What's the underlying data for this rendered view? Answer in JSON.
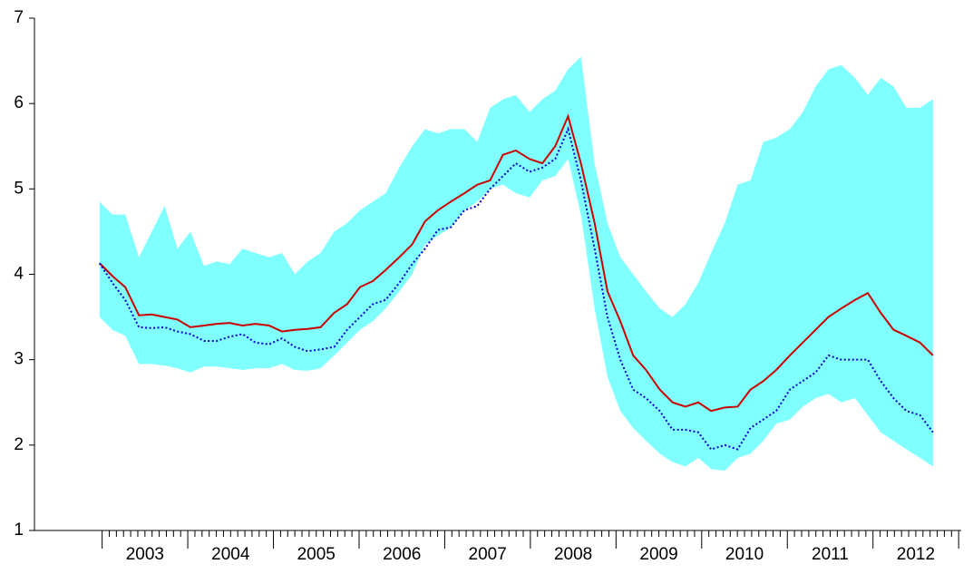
{
  "chart_data": {
    "type": "band-line",
    "x": [
      2002.97,
      2003.12,
      2003.27,
      2003.43,
      2003.58,
      2003.73,
      2003.88,
      2004.03,
      2004.19,
      2004.34,
      2004.49,
      2004.64,
      2004.79,
      2004.95,
      2005.1,
      2005.25,
      2005.4,
      2005.55,
      2005.71,
      2005.86,
      2006.01,
      2006.16,
      2006.31,
      2006.47,
      2006.62,
      2006.77,
      2006.92,
      2007.07,
      2007.23,
      2007.38,
      2007.53,
      2007.68,
      2007.83,
      2007.99,
      2008.14,
      2008.29,
      2008.44,
      2008.59,
      2008.75,
      2008.9,
      2009.05,
      2009.2,
      2009.35,
      2009.51,
      2009.66,
      2009.81,
      2009.96,
      2010.11,
      2010.27,
      2010.42,
      2010.57,
      2010.72,
      2010.87,
      2011.03,
      2011.18,
      2011.33,
      2011.48,
      2011.63,
      2011.79,
      2011.94,
      2012.09,
      2012.24,
      2012.39,
      2012.55,
      2012.7
    ],
    "band": {
      "color": "#80ffff",
      "upper": [
        4.85,
        4.7,
        4.7,
        4.2,
        4.5,
        4.8,
        4.3,
        4.5,
        4.1,
        4.15,
        4.12,
        4.3,
        4.25,
        4.2,
        4.25,
        4.0,
        4.15,
        4.25,
        4.5,
        4.6,
        4.75,
        4.85,
        4.95,
        5.25,
        5.5,
        5.7,
        5.65,
        5.7,
        5.7,
        5.55,
        5.95,
        6.05,
        6.1,
        5.9,
        6.05,
        6.15,
        6.4,
        6.55,
        5.3,
        4.6,
        4.2,
        4.0,
        3.8,
        3.6,
        3.5,
        3.65,
        3.9,
        4.25,
        4.6,
        5.05,
        5.1,
        5.55,
        5.6,
        5.7,
        5.9,
        6.2,
        6.4,
        6.45,
        6.3,
        6.1,
        6.3,
        6.2,
        5.95,
        5.95,
        6.05
      ],
      "lower": [
        3.5,
        3.35,
        3.28,
        2.95,
        2.95,
        2.93,
        2.9,
        2.85,
        2.92,
        2.92,
        2.9,
        2.88,
        2.9,
        2.9,
        2.95,
        2.88,
        2.87,
        2.9,
        3.05,
        3.2,
        3.35,
        3.45,
        3.6,
        3.8,
        4.0,
        4.35,
        4.45,
        4.55,
        4.75,
        4.85,
        5.0,
        5.05,
        4.95,
        4.9,
        5.1,
        5.15,
        5.35,
        4.7,
        3.6,
        2.8,
        2.4,
        2.2,
        2.05,
        1.9,
        1.8,
        1.75,
        1.85,
        1.72,
        1.7,
        1.85,
        1.9,
        2.05,
        2.25,
        2.3,
        2.45,
        2.55,
        2.6,
        2.5,
        2.55,
        2.35,
        2.15,
        2.05,
        1.95,
        1.85,
        1.75
      ]
    },
    "series": [
      {
        "color": "#cc0000",
        "line_style": "solid",
        "values": [
          4.13,
          3.98,
          3.85,
          3.52,
          3.53,
          3.5,
          3.47,
          3.38,
          3.4,
          3.42,
          3.43,
          3.4,
          3.42,
          3.4,
          3.33,
          3.35,
          3.36,
          3.38,
          3.55,
          3.65,
          3.85,
          3.92,
          4.05,
          4.2,
          4.35,
          4.62,
          4.75,
          4.85,
          4.95,
          5.05,
          5.1,
          5.4,
          5.45,
          5.35,
          5.3,
          5.5,
          5.85,
          5.3,
          4.6,
          3.8,
          3.45,
          3.05,
          2.88,
          2.65,
          2.5,
          2.45,
          2.5,
          2.4,
          2.44,
          2.45,
          2.65,
          2.75,
          2.88,
          3.05,
          3.2,
          3.35,
          3.5,
          3.6,
          3.7,
          3.78,
          3.55,
          3.35,
          3.28,
          3.2,
          3.05
        ]
      },
      {
        "color": "#0000cc",
        "line_style": "dotted",
        "values": [
          4.13,
          3.9,
          3.7,
          3.38,
          3.37,
          3.38,
          3.33,
          3.3,
          3.22,
          3.22,
          3.27,
          3.3,
          3.2,
          3.18,
          3.25,
          3.15,
          3.1,
          3.12,
          3.15,
          3.35,
          3.5,
          3.65,
          3.7,
          3.9,
          4.12,
          4.3,
          4.52,
          4.55,
          4.75,
          4.8,
          5.0,
          5.15,
          5.3,
          5.2,
          5.25,
          5.35,
          5.7,
          5.1,
          4.3,
          3.5,
          3.0,
          2.65,
          2.55,
          2.4,
          2.18,
          2.18,
          2.15,
          1.95,
          2.0,
          1.95,
          2.2,
          2.3,
          2.4,
          2.65,
          2.75,
          2.85,
          3.05,
          3.0,
          3.0,
          3.0,
          2.75,
          2.55,
          2.4,
          2.35,
          2.15
        ]
      }
    ],
    "xlim": [
      2002.21,
      2013.03
    ],
    "xticks": [
      {
        "value": 2003.5,
        "label": "2003"
      },
      {
        "value": 2004.5,
        "label": "2004"
      },
      {
        "value": 2005.5,
        "label": "2005"
      },
      {
        "value": 2006.5,
        "label": "2006"
      },
      {
        "value": 2007.5,
        "label": "2007"
      },
      {
        "value": 2008.5,
        "label": "2008"
      },
      {
        "value": 2009.5,
        "label": "2009"
      },
      {
        "value": 2010.5,
        "label": "2010"
      },
      {
        "value": 2011.5,
        "label": "2011"
      },
      {
        "value": 2012.5,
        "label": "2012"
      }
    ],
    "ylim": [
      1,
      7
    ],
    "yticks": [
      1,
      2,
      3,
      4,
      5,
      6,
      7
    ],
    "grid": false
  }
}
